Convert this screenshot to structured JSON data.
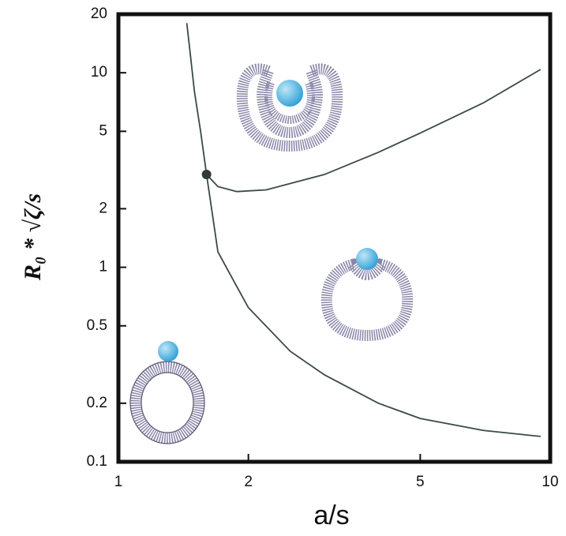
{
  "chart_data": {
    "type": "line",
    "x_label": "a/s",
    "y_label": "R₀ * √ζ/s",
    "xscale": "log",
    "yscale": "log",
    "xlim": [
      1,
      10
    ],
    "ylim": [
      0.1,
      20
    ],
    "xticks": [
      1,
      2,
      5,
      10
    ],
    "yticks": [
      0.1,
      0.2,
      0.5,
      1,
      2,
      5,
      10,
      20
    ],
    "series": [
      {
        "color": "#3c4848",
        "x": [
          1.44,
          1.47,
          1.5,
          1.55,
          1.6,
          1.7,
          1.8,
          2,
          2.5,
          3,
          4,
          5,
          7,
          9.5
        ],
        "values": [
          18,
          12,
          8,
          5,
          3,
          1.2,
          0.95,
          0.62,
          0.37,
          0.28,
          0.2,
          0.167,
          0.145,
          0.135
        ]
      },
      {
        "color": "#3c4848",
        "x": [
          1.6,
          1.7,
          1.88,
          2.2,
          3,
          4,
          5,
          7,
          9.5
        ],
        "values": [
          3,
          2.6,
          2.45,
          2.5,
          3,
          3.9,
          4.9,
          7,
          10.4
        ]
      }
    ],
    "points": {
      "color": "#2f3a3a",
      "x": [
        1.6
      ],
      "values": [
        3
      ]
    }
  }
}
